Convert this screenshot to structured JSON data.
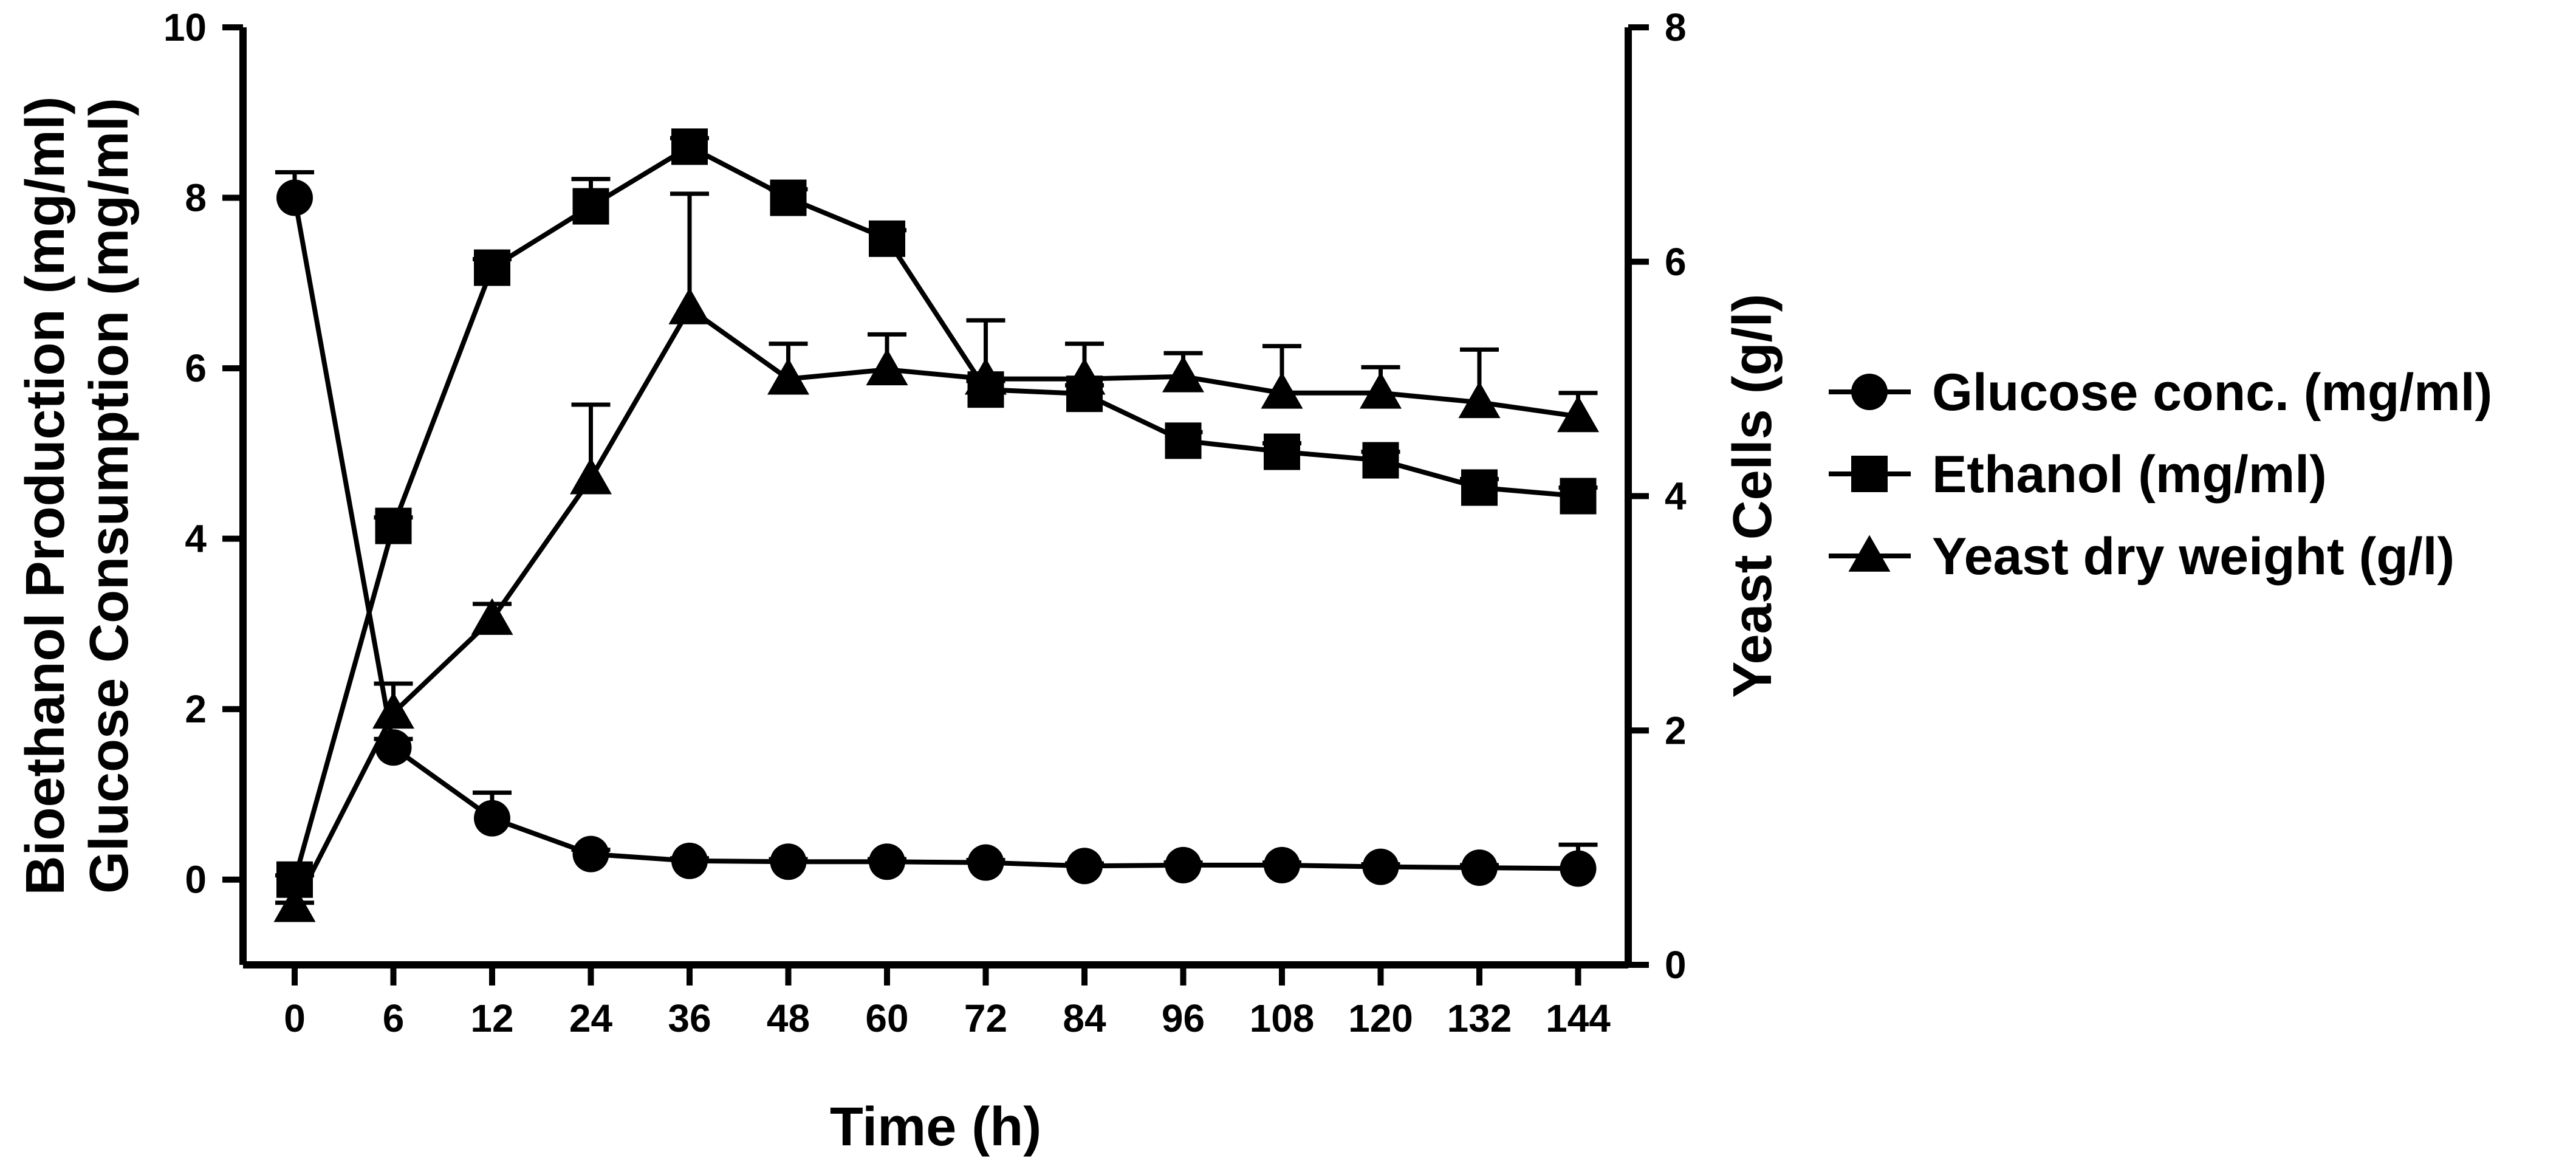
{
  "chart_data": {
    "type": "line",
    "x": [
      0,
      6,
      12,
      24,
      36,
      48,
      60,
      72,
      84,
      96,
      108,
      120,
      132,
      144
    ],
    "x_tick_labels": [
      "0",
      "6",
      "12",
      "24",
      "36",
      "48",
      "60",
      "72",
      "84",
      "96",
      "108",
      "120",
      "132",
      "144"
    ],
    "xlabel": "Time (h)",
    "ylabel_left": [
      "Bioethanol Production (mg/ml)",
      "Glucose Consumption (mg/ml)"
    ],
    "ylabel_right": "Yeast Cells (g/l)",
    "ylim_left": [
      -1,
      10
    ],
    "yticks_left": [
      0,
      2,
      4,
      6,
      8,
      10
    ],
    "ytick_labels_left": [
      "0",
      "2",
      "4",
      "6",
      "8",
      "10"
    ],
    "ylim_right": [
      0,
      8
    ],
    "yticks_right": [
      0,
      2,
      4,
      6,
      8
    ],
    "ytick_labels_right": [
      "0",
      "2",
      "4",
      "6",
      "8"
    ],
    "legend_position": "right",
    "series": [
      {
        "name": "Glucose conc. (mg/ml)",
        "marker": "circle",
        "axis": "left",
        "values": [
          8.0,
          1.55,
          0.72,
          0.3,
          0.22,
          0.21,
          0.21,
          0.2,
          0.16,
          0.17,
          0.17,
          0.15,
          0.14,
          0.13
        ],
        "error": [
          0.3,
          0.1,
          0.3,
          0.05,
          0.03,
          0.03,
          0.03,
          0.03,
          0.03,
          0.03,
          0.03,
          0.03,
          0.03,
          0.28
        ]
      },
      {
        "name": "Ethanol (mg/ml)",
        "marker": "square",
        "axis": "left",
        "values": [
          0.0,
          4.15,
          7.18,
          7.9,
          8.6,
          8.0,
          7.52,
          5.75,
          5.7,
          5.15,
          5.02,
          4.92,
          4.6,
          4.5
        ],
        "error": [
          0.05,
          0.1,
          0.1,
          0.32,
          0.1,
          0.1,
          0.1,
          0.1,
          0.1,
          0.1,
          0.1,
          0.1,
          0.1,
          0.1
        ]
      },
      {
        "name": "Yeast dry weight (g/l)",
        "marker": "triangle",
        "axis": "right",
        "values": [
          0.5,
          2.15,
          2.95,
          4.15,
          5.6,
          5.0,
          5.08,
          5.0,
          5.0,
          5.02,
          4.88,
          4.88,
          4.8,
          4.68
        ],
        "error": [
          0.03,
          0.25,
          0.13,
          0.63,
          0.98,
          0.3,
          0.3,
          0.5,
          0.3,
          0.2,
          0.4,
          0.22,
          0.45,
          0.2
        ]
      }
    ]
  }
}
